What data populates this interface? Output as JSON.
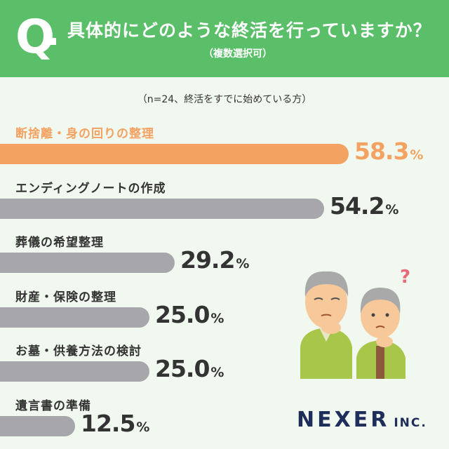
{
  "header": {
    "q_mark": "Q",
    "question": "具体的にどのような終活を行っていますか？",
    "sub_note": "（複数選択可）"
  },
  "note": "（n=24、終活をすでに始めている方）",
  "colors": {
    "header_bg": "#5bbf6a",
    "highlight": "#f3a262",
    "bar": "#a7a7ab",
    "background": "#f1f8ef",
    "logo": "#1f2d5a"
  },
  "chart_data": {
    "type": "bar",
    "orientation": "horizontal",
    "unit": "%",
    "categories": [
      "断捨離・身の回りの整理",
      "エンディングノートの作成",
      "葬儀の希望整理",
      "財産・保険の整理",
      "お墓・供養方法の検討",
      "遺言書の準備"
    ],
    "values": [
      58.3,
      54.2,
      29.2,
      25.0,
      25.0,
      12.5
    ],
    "value_labels": [
      "58.3",
      "54.2",
      "29.2",
      "25.0",
      "25.0",
      "12.5"
    ],
    "highlight_index": 0
  },
  "logo": {
    "name": "NEXER",
    "suffix": "INC."
  },
  "illustration": {
    "icon": "elderly-couple-thinking-icon",
    "mark": "?"
  }
}
